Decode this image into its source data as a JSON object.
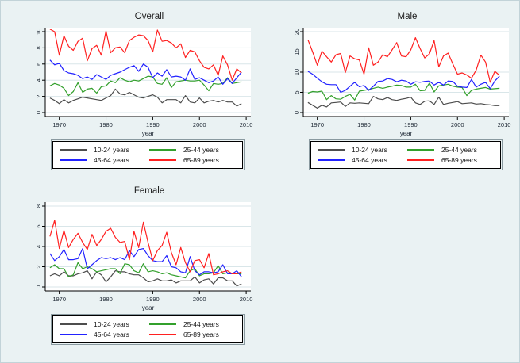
{
  "figure": {
    "background_color": "#eaf2f3",
    "plot_background_color": "#ffffff",
    "grid_color": "#d9e6e9",
    "axis_color": "#000000",
    "tick_text_color": "#202a36",
    "legend_border_color": "#000000"
  },
  "chart_data": [
    {
      "type": "line",
      "title": "Overall",
      "xlabel": "year",
      "ylim": [
        0,
        10
      ],
      "yticks": [
        0,
        2,
        4,
        6,
        8,
        10
      ],
      "xticks": [
        1970,
        1980,
        1990,
        2000,
        2010
      ],
      "xlim": [
        1967,
        2011
      ],
      "grid": true,
      "legend_position": "bottom",
      "x": [
        1968,
        1969,
        1970,
        1971,
        1972,
        1973,
        1974,
        1975,
        1976,
        1977,
        1978,
        1979,
        1980,
        1981,
        1982,
        1983,
        1984,
        1985,
        1986,
        1987,
        1988,
        1989,
        1990,
        1991,
        1992,
        1993,
        1994,
        1995,
        1996,
        1997,
        1998,
        1999,
        2000,
        2001,
        2002,
        2003,
        2004,
        2005,
        2006,
        2007,
        2008,
        2009
      ],
      "series": [
        {
          "name": "10-24 years",
          "color": "#4d4d4d",
          "values": [
            1.8,
            1.5,
            1.1,
            1.6,
            1.2,
            1.5,
            1.7,
            1.9,
            1.8,
            1.7,
            1.6,
            1.5,
            1.8,
            2.1,
            2.9,
            2.3,
            2.2,
            2.5,
            2.2,
            1.9,
            1.8,
            2.0,
            2.2,
            1.9,
            1.2,
            1.6,
            1.6,
            1.6,
            1.2,
            2.1,
            1.3,
            1.2,
            1.8,
            1.2,
            1.4,
            1.5,
            1.3,
            1.5,
            1.3,
            1.3,
            0.8,
            1.1
          ]
        },
        {
          "name": "25-44 years",
          "color": "#33a02c",
          "values": [
            3.3,
            3.6,
            3.4,
            3.0,
            2.1,
            2.6,
            3.7,
            2.5,
            2.9,
            3.0,
            2.4,
            3.2,
            3.3,
            3.9,
            3.7,
            4.3,
            4.0,
            3.8,
            4.0,
            3.9,
            4.2,
            4.5,
            4.4,
            3.6,
            3.5,
            4.3,
            3.1,
            3.8,
            3.9,
            4.0,
            3.9,
            3.9,
            4.0,
            3.4,
            2.7,
            3.6,
            3.5,
            3.6,
            4.3,
            3.6,
            3.7,
            3.8
          ]
        },
        {
          "name": "45-64 years",
          "color": "#2222ff",
          "values": [
            6.5,
            5.9,
            6.1,
            5.2,
            4.9,
            4.8,
            4.6,
            4.2,
            4.4,
            4.1,
            4.7,
            4.4,
            4.1,
            4.6,
            4.8,
            5.0,
            5.3,
            5.6,
            5.8,
            5.1,
            6.0,
            5.6,
            4.3,
            4.9,
            4.5,
            5.3,
            4.4,
            4.5,
            4.4,
            4.0,
            5.4,
            4.1,
            4.3,
            4.0,
            3.7,
            3.9,
            4.4,
            3.5,
            4.2,
            3.6,
            4.3,
            5.0
          ]
        },
        {
          "name": "65-89 years",
          "color": "#ff2020",
          "values": [
            10.3,
            10.0,
            7.1,
            9.5,
            8.2,
            7.7,
            8.8,
            9.2,
            6.4,
            7.9,
            8.3,
            7.1,
            10.1,
            7.4,
            8.0,
            8.1,
            7.4,
            8.9,
            9.3,
            9.6,
            9.5,
            8.9,
            7.5,
            10.2,
            8.8,
            8.9,
            8.6,
            8.0,
            8.5,
            6.8,
            7.7,
            7.5,
            6.4,
            5.6,
            5.4,
            5.9,
            4.6,
            7.0,
            5.9,
            4.0,
            5.4,
            4.9
          ]
        }
      ]
    },
    {
      "type": "line",
      "title": "Male",
      "xlabel": "year",
      "ylim": [
        0,
        20
      ],
      "yticks": [
        0,
        5,
        10,
        15,
        20
      ],
      "xticks": [
        1970,
        1980,
        1990,
        2000,
        2010
      ],
      "xlim": [
        1967,
        2011
      ],
      "grid": true,
      "legend_position": "bottom",
      "x": [
        1968,
        1969,
        1970,
        1971,
        1972,
        1973,
        1974,
        1975,
        1976,
        1977,
        1978,
        1979,
        1980,
        1981,
        1982,
        1983,
        1984,
        1985,
        1986,
        1987,
        1988,
        1989,
        1990,
        1991,
        1992,
        1993,
        1994,
        1995,
        1996,
        1997,
        1998,
        1999,
        2000,
        2001,
        2002,
        2003,
        2004,
        2005,
        2006,
        2007,
        2008,
        2009
      ],
      "series": [
        {
          "name": "10-24 years",
          "color": "#4d4d4d",
          "values": [
            2.5,
            1.8,
            1.1,
            1.8,
            1.4,
            2.4,
            2.5,
            2.6,
            1.5,
            2.4,
            2.3,
            2.4,
            2.3,
            2.2,
            4.0,
            3.4,
            3.2,
            3.7,
            3.2,
            3.0,
            3.3,
            3.5,
            3.8,
            2.4,
            2.0,
            2.8,
            2.9,
            2.0,
            3.8,
            2.0,
            2.3,
            2.5,
            2.7,
            2.2,
            2.3,
            2.4,
            2.1,
            2.2,
            2.0,
            1.9,
            1.7,
            1.7
          ]
        },
        {
          "name": "25-44 years",
          "color": "#33a02c",
          "values": [
            4.8,
            5.2,
            5.1,
            5.3,
            3.2,
            4.2,
            3.4,
            3.3,
            4.0,
            4.5,
            3.1,
            5.3,
            5.5,
            5.7,
            6.0,
            6.3,
            6.0,
            6.3,
            6.5,
            6.8,
            6.7,
            6.3,
            6.3,
            7.0,
            5.4,
            5.5,
            7.3,
            5.1,
            6.6,
            6.8,
            7.0,
            6.5,
            6.3,
            6.2,
            4.2,
            5.5,
            5.8,
            6.0,
            6.2,
            5.8,
            5.9,
            6.0
          ]
        },
        {
          "name": "45-64 years",
          "color": "#2222ff",
          "values": [
            10.2,
            9.5,
            8.5,
            7.6,
            7.0,
            6.9,
            6.9,
            5.0,
            5.5,
            6.5,
            7.5,
            6.4,
            6.7,
            5.5,
            6.5,
            7.7,
            7.8,
            8.4,
            8.2,
            7.6,
            8.0,
            7.8,
            7.0,
            7.6,
            7.5,
            7.7,
            7.8,
            6.8,
            7.5,
            6.8,
            7.8,
            7.7,
            6.5,
            6.3,
            6.2,
            8.2,
            6.3,
            7.0,
            7.5,
            5.9,
            7.8,
            9.0
          ]
        },
        {
          "name": "65-89 years",
          "color": "#ff2020",
          "values": [
            18.0,
            15.0,
            11.7,
            15.2,
            13.8,
            12.5,
            14.3,
            14.6,
            9.9,
            14.0,
            13.3,
            13.0,
            9.5,
            16.0,
            11.7,
            12.5,
            14.3,
            13.8,
            15.5,
            17.3,
            14.0,
            13.8,
            15.5,
            18.5,
            15.8,
            13.5,
            14.5,
            17.8,
            11.3,
            14.0,
            14.7,
            12.0,
            9.5,
            9.8,
            9.3,
            8.5,
            10.5,
            14.2,
            12.5,
            7.5,
            10.2,
            9.2
          ]
        }
      ]
    },
    {
      "type": "line",
      "title": "Female",
      "xlabel": "year",
      "ylim": [
        0,
        8
      ],
      "yticks": [
        0,
        2,
        4,
        6,
        8
      ],
      "xticks": [
        1970,
        1980,
        1990,
        2000,
        2010
      ],
      "xlim": [
        1967,
        2011
      ],
      "grid": true,
      "legend_position": "bottom",
      "x": [
        1968,
        1969,
        1970,
        1971,
        1972,
        1973,
        1974,
        1975,
        1976,
        1977,
        1978,
        1979,
        1980,
        1981,
        1982,
        1983,
        1984,
        1985,
        1986,
        1987,
        1988,
        1989,
        1990,
        1991,
        1992,
        1993,
        1994,
        1995,
        1996,
        1997,
        1998,
        1999,
        2000,
        2001,
        2002,
        2003,
        2004,
        2005,
        2006,
        2007,
        2008,
        2009
      ],
      "series": [
        {
          "name": "10-24 years",
          "color": "#4d4d4d",
          "values": [
            1.1,
            1.3,
            1.1,
            1.5,
            1.1,
            1.1,
            1.3,
            1.4,
            1.6,
            0.8,
            1.5,
            1.2,
            0.5,
            1.0,
            1.6,
            1.5,
            1.5,
            1.3,
            1.2,
            1.2,
            0.9,
            0.5,
            0.6,
            0.8,
            0.6,
            0.6,
            0.7,
            0.4,
            0.6,
            0.6,
            0.6,
            1.0,
            0.4,
            0.7,
            0.8,
            0.3,
            0.9,
            0.9,
            0.6,
            0.6,
            0.1,
            0.3
          ]
        },
        {
          "name": "25-44 years",
          "color": "#33a02c",
          "values": [
            1.9,
            2.2,
            1.8,
            1.8,
            1.0,
            1.2,
            2.4,
            1.8,
            2.0,
            1.8,
            1.5,
            1.6,
            1.7,
            1.8,
            1.8,
            1.3,
            2.3,
            2.2,
            1.6,
            1.4,
            2.3,
            1.5,
            1.6,
            1.5,
            1.3,
            1.4,
            1.2,
            1.1,
            1.0,
            0.9,
            1.6,
            1.8,
            1.1,
            1.3,
            1.3,
            1.4,
            2.1,
            1.3,
            1.4,
            1.3,
            1.3,
            1.3
          ]
        },
        {
          "name": "45-64 years",
          "color": "#2222ff",
          "values": [
            3.3,
            2.6,
            3.0,
            3.7,
            2.7,
            2.7,
            2.8,
            3.8,
            1.8,
            2.2,
            2.6,
            2.9,
            2.8,
            2.9,
            2.7,
            2.9,
            2.7,
            3.6,
            3.0,
            3.7,
            3.8,
            3.1,
            2.6,
            2.5,
            2.5,
            3.1,
            2.0,
            1.9,
            1.5,
            1.4,
            3.0,
            1.6,
            1.2,
            1.5,
            1.5,
            1.4,
            1.5,
            2.2,
            1.3,
            1.3,
            1.6,
            1.0
          ]
        },
        {
          "name": "65-89 years",
          "color": "#ff2020",
          "values": [
            5.0,
            6.6,
            3.8,
            5.6,
            3.9,
            4.7,
            5.3,
            4.4,
            3.7,
            5.2,
            4.1,
            4.7,
            5.5,
            5.8,
            4.9,
            4.4,
            4.5,
            2.7,
            5.5,
            3.9,
            6.4,
            4.4,
            2.6,
            3.6,
            4.1,
            5.4,
            3.4,
            2.2,
            3.9,
            2.4,
            1.5,
            2.6,
            2.7,
            1.9,
            3.3,
            1.2,
            1.3,
            1.5,
            1.6,
            1.3,
            1.3,
            1.5
          ]
        }
      ]
    }
  ]
}
